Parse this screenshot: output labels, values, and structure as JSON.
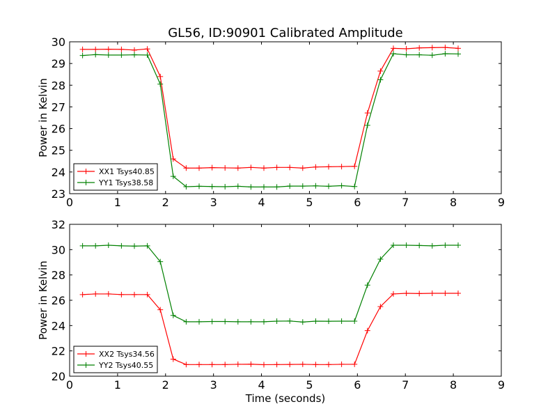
{
  "figure": {
    "title": "GL56, ID:90901 Calibrated Amplitude"
  },
  "chart_data": [
    {
      "type": "line",
      "title": "GL56, ID:90901 Calibrated Amplitude",
      "xlabel": "",
      "ylabel": "Power in Kelvin",
      "xlim": [
        0,
        9
      ],
      "ylim": [
        23,
        30
      ],
      "xticks": [
        0,
        1,
        2,
        3,
        4,
        5,
        6,
        7,
        8,
        9
      ],
      "yticks": [
        23,
        24,
        25,
        26,
        27,
        28,
        29,
        30
      ],
      "grid": false,
      "legend_position": "bottom-left",
      "x": [
        0.27,
        0.54,
        0.81,
        1.08,
        1.35,
        1.62,
        1.89,
        2.16,
        2.43,
        2.7,
        2.97,
        3.24,
        3.51,
        3.78,
        4.05,
        4.32,
        4.59,
        4.86,
        5.13,
        5.4,
        5.67,
        5.94,
        6.21,
        6.48,
        6.75,
        7.02,
        7.29,
        7.56,
        7.83,
        8.1
      ],
      "series": [
        {
          "name": "XX1 Tsys40.85",
          "color": "#ff0000",
          "values": [
            29.65,
            29.65,
            29.66,
            29.65,
            29.62,
            29.67,
            28.4,
            24.6,
            24.18,
            24.18,
            24.2,
            24.19,
            24.18,
            24.21,
            24.18,
            24.21,
            24.21,
            24.18,
            24.23,
            24.24,
            24.25,
            24.26,
            26.72,
            28.65,
            29.7,
            29.68,
            29.72,
            29.73,
            29.74,
            29.7
          ]
        },
        {
          "name": "YY1 Tsys38.58",
          "color": "#008000",
          "values": [
            29.37,
            29.41,
            29.39,
            29.39,
            29.4,
            29.39,
            28.05,
            23.8,
            23.32,
            23.34,
            23.33,
            23.32,
            23.34,
            23.31,
            23.31,
            23.31,
            23.35,
            23.35,
            23.36,
            23.34,
            23.37,
            23.33,
            26.15,
            28.25,
            29.45,
            29.4,
            29.4,
            29.38,
            29.45,
            29.44
          ]
        }
      ]
    },
    {
      "type": "line",
      "title": "",
      "xlabel": "Time (seconds)",
      "ylabel": "Power in Kelvin",
      "xlim": [
        0,
        9
      ],
      "ylim": [
        20,
        32
      ],
      "xticks": [
        0,
        1,
        2,
        3,
        4,
        5,
        6,
        7,
        8,
        9
      ],
      "yticks": [
        20,
        22,
        24,
        26,
        28,
        30,
        32
      ],
      "grid": false,
      "legend_position": "bottom-left",
      "x": [
        0.27,
        0.54,
        0.81,
        1.08,
        1.35,
        1.62,
        1.89,
        2.16,
        2.43,
        2.7,
        2.97,
        3.24,
        3.51,
        3.78,
        4.05,
        4.32,
        4.59,
        4.86,
        5.13,
        5.4,
        5.67,
        5.94,
        6.21,
        6.48,
        6.75,
        7.02,
        7.29,
        7.56,
        7.83,
        8.1
      ],
      "series": [
        {
          "name": "XX2 Tsys34.56",
          "color": "#ff0000",
          "values": [
            26.45,
            26.5,
            26.5,
            26.45,
            26.45,
            26.45,
            25.25,
            21.35,
            20.92,
            20.92,
            20.92,
            20.92,
            20.94,
            20.95,
            20.91,
            20.92,
            20.93,
            20.94,
            20.92,
            20.92,
            20.94,
            20.94,
            23.6,
            25.5,
            26.5,
            26.55,
            26.53,
            26.55,
            26.55,
            26.55
          ]
        },
        {
          "name": "YY2 Tsys40.55",
          "color": "#008000",
          "values": [
            30.3,
            30.3,
            30.35,
            30.3,
            30.28,
            30.3,
            29.05,
            24.8,
            24.3,
            24.3,
            24.32,
            24.32,
            24.3,
            24.3,
            24.3,
            24.35,
            24.36,
            24.28,
            24.35,
            24.34,
            24.35,
            24.35,
            27.2,
            29.25,
            30.35,
            30.35,
            30.33,
            30.3,
            30.35,
            30.35
          ]
        }
      ]
    }
  ]
}
